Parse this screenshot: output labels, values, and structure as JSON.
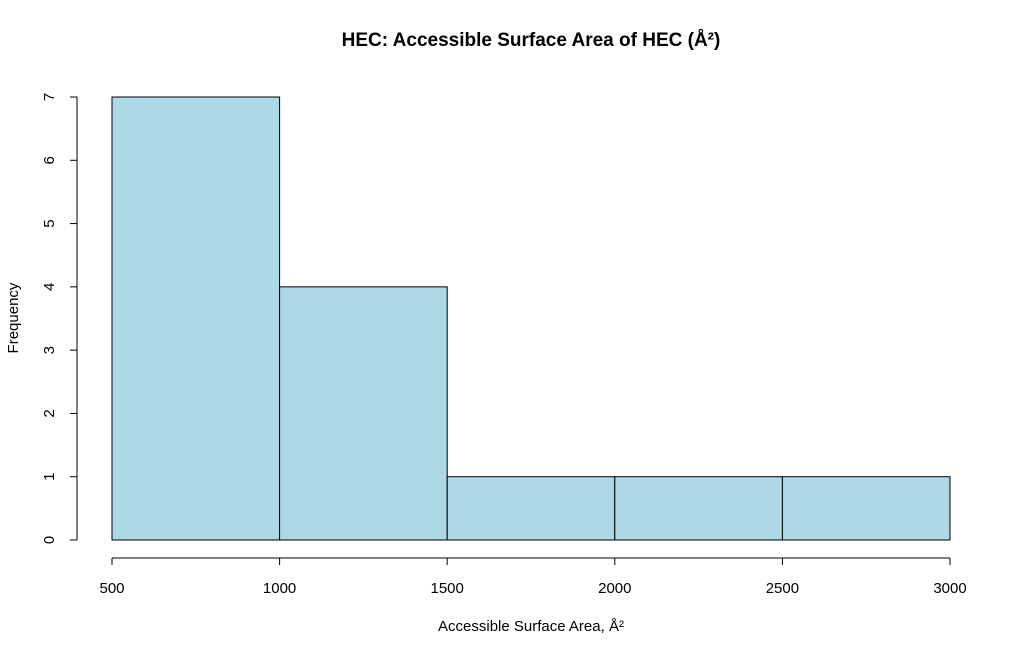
{
  "chart_data": {
    "type": "bar",
    "subtype": "histogram",
    "title": "HEC: Accessible Surface Area of HEC (Å²)",
    "xlabel": "Accessible Surface Area, Å²",
    "ylabel": "Frequency",
    "bins": [
      {
        "start": 500,
        "end": 1000,
        "count": 7
      },
      {
        "start": 1000,
        "end": 1500,
        "count": 4
      },
      {
        "start": 1500,
        "end": 2000,
        "count": 1
      },
      {
        "start": 2000,
        "end": 2500,
        "count": 1
      },
      {
        "start": 2500,
        "end": 3000,
        "count": 1
      }
    ],
    "xlim": [
      500,
      3000
    ],
    "ylim": [
      0,
      7
    ],
    "x_ticks": [
      "500",
      "1000",
      "1500",
      "2000",
      "2500",
      "3000"
    ],
    "y_ticks": [
      "0",
      "1",
      "2",
      "3",
      "4",
      "5",
      "6",
      "7"
    ],
    "bar_color": "#add8e6",
    "grid": false,
    "legend": "none"
  }
}
